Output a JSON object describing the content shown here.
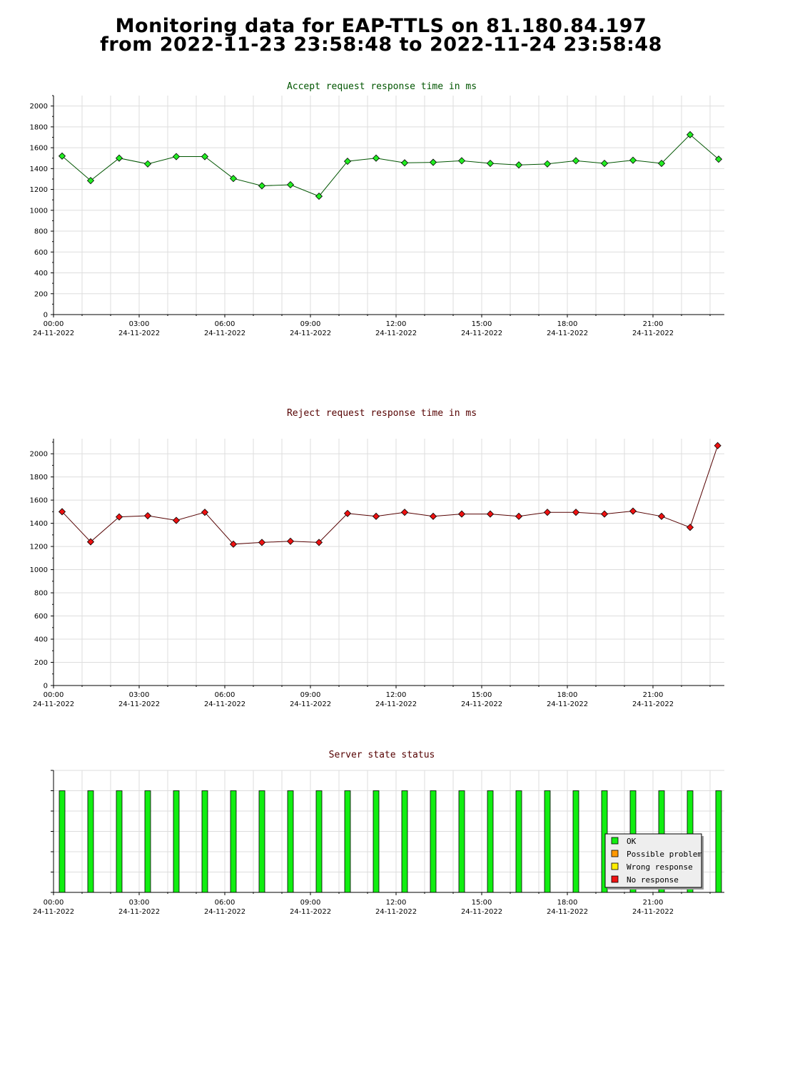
{
  "page": {
    "title_line1": "Monitoring data for EAP-TTLS on 81.180.84.197",
    "title_line2": "from 2022-11-23 23:58:48 to 2022-11-24 23:58:48"
  },
  "colors": {
    "accept_marker": "#22ee22",
    "accept_line": "#005500",
    "accept_title": "#005500",
    "reject_marker": "#ee1111",
    "reject_line": "#550000",
    "reject_title": "#550000",
    "status_title": "#550000",
    "grid": "#dddddd",
    "status_ok": "#11ee11",
    "status_possible_problem": "#ff9900",
    "status_wrong_response": "#ffee00",
    "status_no_response": "#ee1111"
  },
  "chart_data": [
    {
      "type": "line",
      "title": "Accept request response time in ms",
      "x_tick_labels": [
        {
          "time": "00:00",
          "date": "24-11-2022"
        },
        {
          "time": "03:00",
          "date": "24-11-2022"
        },
        {
          "time": "06:00",
          "date": "24-11-2022"
        },
        {
          "time": "09:00",
          "date": "24-11-2022"
        },
        {
          "time": "12:00",
          "date": "24-11-2022"
        },
        {
          "time": "15:00",
          "date": "24-11-2022"
        },
        {
          "time": "18:00",
          "date": "24-11-2022"
        },
        {
          "time": "21:00",
          "date": "24-11-2022"
        }
      ],
      "y_tick_labels": [
        "0",
        "200",
        "400",
        "600",
        "800",
        "1000",
        "1200",
        "1400",
        "1600",
        "1800",
        "2000"
      ],
      "xlim": [
        "2022-11-24 00:00",
        "2022-11-24 23:30"
      ],
      "ylim": [
        0,
        2100
      ],
      "grid": true,
      "x": [
        "2022-11-24 00:18",
        "2022-11-24 01:18",
        "2022-11-24 02:18",
        "2022-11-24 03:18",
        "2022-11-24 04:18",
        "2022-11-24 05:18",
        "2022-11-24 06:18",
        "2022-11-24 07:18",
        "2022-11-24 08:18",
        "2022-11-24 09:18",
        "2022-11-24 10:18",
        "2022-11-24 11:18",
        "2022-11-24 12:18",
        "2022-11-24 13:18",
        "2022-11-24 14:18",
        "2022-11-24 15:18",
        "2022-11-24 16:18",
        "2022-11-24 17:18",
        "2022-11-24 18:18",
        "2022-11-24 19:18",
        "2022-11-24 20:18",
        "2022-11-24 21:18",
        "2022-11-24 22:18",
        "2022-11-24 23:18"
      ],
      "values": [
        1520,
        1285,
        1500,
        1445,
        1515,
        1515,
        1305,
        1235,
        1245,
        1135,
        1470,
        1500,
        1455,
        1460,
        1475,
        1450,
        1435,
        1445,
        1475,
        1450,
        1480,
        1450,
        1725,
        1490
      ]
    },
    {
      "type": "line",
      "title": "Reject request response time in ms",
      "x_tick_labels": [
        {
          "time": "00:00",
          "date": "24-11-2022"
        },
        {
          "time": "03:00",
          "date": "24-11-2022"
        },
        {
          "time": "06:00",
          "date": "24-11-2022"
        },
        {
          "time": "09:00",
          "date": "24-11-2022"
        },
        {
          "time": "12:00",
          "date": "24-11-2022"
        },
        {
          "time": "15:00",
          "date": "24-11-2022"
        },
        {
          "time": "18:00",
          "date": "24-11-2022"
        },
        {
          "time": "21:00",
          "date": "24-11-2022"
        }
      ],
      "y_tick_labels": [
        "0",
        "200",
        "400",
        "600",
        "800",
        "1000",
        "1200",
        "1400",
        "1600",
        "1800",
        "2000"
      ],
      "xlim": [
        "2022-11-24 00:00",
        "2022-11-24 23:30"
      ],
      "ylim": [
        0,
        2130
      ],
      "grid": true,
      "x": [
        "2022-11-24 00:18",
        "2022-11-24 01:18",
        "2022-11-24 02:18",
        "2022-11-24 03:18",
        "2022-11-24 04:18",
        "2022-11-24 05:18",
        "2022-11-24 06:18",
        "2022-11-24 07:18",
        "2022-11-24 08:18",
        "2022-11-24 09:18",
        "2022-11-24 10:18",
        "2022-11-24 11:18",
        "2022-11-24 12:18",
        "2022-11-24 13:18",
        "2022-11-24 14:18",
        "2022-11-24 15:18",
        "2022-11-24 16:18",
        "2022-11-24 17:18",
        "2022-11-24 18:18",
        "2022-11-24 19:18",
        "2022-11-24 20:18",
        "2022-11-24 21:18",
        "2022-11-24 22:18",
        "2022-11-24 23:16"
      ],
      "values": [
        1500,
        1240,
        1455,
        1465,
        1425,
        1495,
        1220,
        1235,
        1245,
        1235,
        1485,
        1460,
        1495,
        1460,
        1480,
        1480,
        1460,
        1495,
        1495,
        1480,
        1505,
        1460,
        1365,
        2070
      ]
    },
    {
      "type": "bar",
      "title": "Server state status",
      "x_tick_labels": [
        {
          "time": "00:00",
          "date": "24-11-2022"
        },
        {
          "time": "03:00",
          "date": "24-11-2022"
        },
        {
          "time": "06:00",
          "date": "24-11-2022"
        },
        {
          "time": "09:00",
          "date": "24-11-2022"
        },
        {
          "time": "12:00",
          "date": "24-11-2022"
        },
        {
          "time": "15:00",
          "date": "24-11-2022"
        },
        {
          "time": "18:00",
          "date": "24-11-2022"
        },
        {
          "time": "21:00",
          "date": "24-11-2022"
        }
      ],
      "xlim": [
        "2022-11-24 00:00",
        "2022-11-24 23:30"
      ],
      "grid": true,
      "legend": [
        "OK",
        "Possible problem",
        "Wrong response",
        "No response"
      ],
      "legend_position": "bottom-right",
      "x": [
        "2022-11-24 00:18",
        "2022-11-24 01:18",
        "2022-11-24 02:18",
        "2022-11-24 03:18",
        "2022-11-24 04:18",
        "2022-11-24 05:18",
        "2022-11-24 06:18",
        "2022-11-24 07:18",
        "2022-11-24 08:18",
        "2022-11-24 09:18",
        "2022-11-24 10:18",
        "2022-11-24 11:18",
        "2022-11-24 12:18",
        "2022-11-24 13:18",
        "2022-11-24 14:18",
        "2022-11-24 15:18",
        "2022-11-24 16:18",
        "2022-11-24 17:18",
        "2022-11-24 18:18",
        "2022-11-24 19:18",
        "2022-11-24 20:18",
        "2022-11-24 21:18",
        "2022-11-24 22:18",
        "2022-11-24 23:18"
      ],
      "status": [
        "OK",
        "OK",
        "OK",
        "OK",
        "OK",
        "OK",
        "OK",
        "OK",
        "OK",
        "OK",
        "OK",
        "OK",
        "OK",
        "OK",
        "OK",
        "OK",
        "OK",
        "OK",
        "OK",
        "OK",
        "OK",
        "OK",
        "OK",
        "OK"
      ]
    }
  ]
}
